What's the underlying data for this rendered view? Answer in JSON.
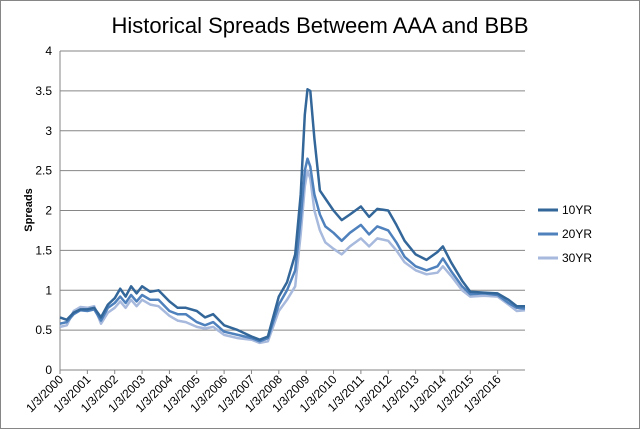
{
  "chart_data": {
    "type": "line",
    "title": "Historical Spreads Betweem AAA and BBB",
    "xlabel": "",
    "ylabel": "Spreads",
    "ylim": [
      0,
      4
    ],
    "yticks": [
      "0",
      "0.5",
      "1",
      "1.5",
      "2",
      "2.5",
      "3",
      "3.5",
      "4"
    ],
    "xticks": [
      "1/3/2000",
      "1/3/2001",
      "1/3/2002",
      "1/3/2003",
      "1/3/2004",
      "1/3/2005",
      "1/3/2006",
      "1/3/2007",
      "1/3/2008",
      "1/3/2009",
      "1/3/2010",
      "1/3/2011",
      "1/3/2012",
      "1/3/2013",
      "1/3/2014",
      "1/3/2015",
      "1/3/2016"
    ],
    "grid": "horizontal",
    "legend": "right",
    "series": [
      {
        "name": "10YR",
        "color": "#336699",
        "points": [
          [
            2000.0,
            0.66
          ],
          [
            2000.25,
            0.63
          ],
          [
            2000.5,
            0.72
          ],
          [
            2000.75,
            0.76
          ],
          [
            2001.0,
            0.76
          ],
          [
            2001.25,
            0.78
          ],
          [
            2001.5,
            0.66
          ],
          [
            2001.75,
            0.82
          ],
          [
            2002.0,
            0.9
          ],
          [
            2002.2,
            1.02
          ],
          [
            2002.4,
            0.92
          ],
          [
            2002.6,
            1.05
          ],
          [
            2002.8,
            0.96
          ],
          [
            2003.0,
            1.05
          ],
          [
            2003.3,
            0.98
          ],
          [
            2003.6,
            1.0
          ],
          [
            2004.0,
            0.86
          ],
          [
            2004.3,
            0.78
          ],
          [
            2004.6,
            0.78
          ],
          [
            2005.0,
            0.74
          ],
          [
            2005.3,
            0.66
          ],
          [
            2005.6,
            0.7
          ],
          [
            2006.0,
            0.56
          ],
          [
            2006.5,
            0.5
          ],
          [
            2007.0,
            0.42
          ],
          [
            2007.3,
            0.38
          ],
          [
            2007.6,
            0.42
          ],
          [
            2008.0,
            0.92
          ],
          [
            2008.3,
            1.1
          ],
          [
            2008.6,
            1.45
          ],
          [
            2008.8,
            2.2
          ],
          [
            2008.95,
            3.2
          ],
          [
            2009.05,
            3.52
          ],
          [
            2009.15,
            3.5
          ],
          [
            2009.3,
            2.9
          ],
          [
            2009.5,
            2.25
          ],
          [
            2009.7,
            2.15
          ],
          [
            2010.0,
            2.0
          ],
          [
            2010.3,
            1.88
          ],
          [
            2010.6,
            1.95
          ],
          [
            2011.0,
            2.05
          ],
          [
            2011.3,
            1.92
          ],
          [
            2011.6,
            2.02
          ],
          [
            2012.0,
            2.0
          ],
          [
            2012.3,
            1.82
          ],
          [
            2012.6,
            1.62
          ],
          [
            2013.0,
            1.45
          ],
          [
            2013.4,
            1.38
          ],
          [
            2013.8,
            1.48
          ],
          [
            2014.0,
            1.55
          ],
          [
            2014.3,
            1.35
          ],
          [
            2014.7,
            1.12
          ],
          [
            2015.0,
            0.98
          ],
          [
            2015.5,
            0.97
          ],
          [
            2016.0,
            0.96
          ],
          [
            2016.4,
            0.88
          ],
          [
            2016.7,
            0.8
          ],
          [
            2017.0,
            0.8
          ]
        ]
      },
      {
        "name": "20YR",
        "color": "#4f81bd",
        "points": [
          [
            2000.0,
            0.58
          ],
          [
            2000.25,
            0.6
          ],
          [
            2000.5,
            0.7
          ],
          [
            2000.75,
            0.75
          ],
          [
            2001.0,
            0.74
          ],
          [
            2001.25,
            0.76
          ],
          [
            2001.5,
            0.62
          ],
          [
            2001.75,
            0.78
          ],
          [
            2002.0,
            0.84
          ],
          [
            2002.2,
            0.92
          ],
          [
            2002.4,
            0.84
          ],
          [
            2002.6,
            0.94
          ],
          [
            2002.8,
            0.86
          ],
          [
            2003.0,
            0.94
          ],
          [
            2003.3,
            0.88
          ],
          [
            2003.6,
            0.88
          ],
          [
            2004.0,
            0.74
          ],
          [
            2004.3,
            0.7
          ],
          [
            2004.6,
            0.7
          ],
          [
            2005.0,
            0.6
          ],
          [
            2005.3,
            0.56
          ],
          [
            2005.6,
            0.6
          ],
          [
            2006.0,
            0.48
          ],
          [
            2006.5,
            0.44
          ],
          [
            2007.0,
            0.4
          ],
          [
            2007.3,
            0.36
          ],
          [
            2007.6,
            0.4
          ],
          [
            2008.0,
            0.82
          ],
          [
            2008.3,
            1.0
          ],
          [
            2008.6,
            1.25
          ],
          [
            2008.8,
            1.9
          ],
          [
            2008.95,
            2.5
          ],
          [
            2009.05,
            2.65
          ],
          [
            2009.15,
            2.55
          ],
          [
            2009.3,
            2.2
          ],
          [
            2009.5,
            1.95
          ],
          [
            2009.7,
            1.8
          ],
          [
            2010.0,
            1.72
          ],
          [
            2010.3,
            1.62
          ],
          [
            2010.6,
            1.72
          ],
          [
            2011.0,
            1.82
          ],
          [
            2011.3,
            1.7
          ],
          [
            2011.6,
            1.8
          ],
          [
            2012.0,
            1.75
          ],
          [
            2012.3,
            1.6
          ],
          [
            2012.6,
            1.42
          ],
          [
            2013.0,
            1.3
          ],
          [
            2013.4,
            1.25
          ],
          [
            2013.8,
            1.3
          ],
          [
            2014.0,
            1.4
          ],
          [
            2014.3,
            1.24
          ],
          [
            2014.7,
            1.05
          ],
          [
            2015.0,
            0.95
          ],
          [
            2015.5,
            0.96
          ],
          [
            2016.0,
            0.94
          ],
          [
            2016.4,
            0.84
          ],
          [
            2016.7,
            0.78
          ],
          [
            2017.0,
            0.77
          ]
        ]
      },
      {
        "name": "30YR",
        "color": "#a7b9dc",
        "points": [
          [
            2000.0,
            0.54
          ],
          [
            2000.25,
            0.56
          ],
          [
            2000.5,
            0.74
          ],
          [
            2000.75,
            0.79
          ],
          [
            2001.0,
            0.78
          ],
          [
            2001.25,
            0.8
          ],
          [
            2001.5,
            0.58
          ],
          [
            2001.75,
            0.72
          ],
          [
            2002.0,
            0.78
          ],
          [
            2002.2,
            0.86
          ],
          [
            2002.4,
            0.78
          ],
          [
            2002.6,
            0.88
          ],
          [
            2002.8,
            0.8
          ],
          [
            2003.0,
            0.88
          ],
          [
            2003.3,
            0.82
          ],
          [
            2003.6,
            0.8
          ],
          [
            2004.0,
            0.68
          ],
          [
            2004.3,
            0.62
          ],
          [
            2004.6,
            0.6
          ],
          [
            2005.0,
            0.54
          ],
          [
            2005.3,
            0.52
          ],
          [
            2005.6,
            0.54
          ],
          [
            2006.0,
            0.44
          ],
          [
            2006.5,
            0.4
          ],
          [
            2007.0,
            0.38
          ],
          [
            2007.3,
            0.34
          ],
          [
            2007.6,
            0.36
          ],
          [
            2008.0,
            0.74
          ],
          [
            2008.3,
            0.88
          ],
          [
            2008.6,
            1.05
          ],
          [
            2008.8,
            1.7
          ],
          [
            2008.95,
            2.3
          ],
          [
            2009.05,
            2.5
          ],
          [
            2009.15,
            2.4
          ],
          [
            2009.3,
            2.0
          ],
          [
            2009.5,
            1.75
          ],
          [
            2009.7,
            1.6
          ],
          [
            2010.0,
            1.52
          ],
          [
            2010.3,
            1.45
          ],
          [
            2010.6,
            1.55
          ],
          [
            2011.0,
            1.65
          ],
          [
            2011.3,
            1.55
          ],
          [
            2011.6,
            1.65
          ],
          [
            2012.0,
            1.62
          ],
          [
            2012.3,
            1.5
          ],
          [
            2012.6,
            1.35
          ],
          [
            2013.0,
            1.25
          ],
          [
            2013.4,
            1.2
          ],
          [
            2013.8,
            1.22
          ],
          [
            2014.0,
            1.3
          ],
          [
            2014.3,
            1.18
          ],
          [
            2014.7,
            1.0
          ],
          [
            2015.0,
            0.92
          ],
          [
            2015.5,
            0.93
          ],
          [
            2016.0,
            0.92
          ],
          [
            2016.4,
            0.82
          ],
          [
            2016.7,
            0.74
          ],
          [
            2017.0,
            0.75
          ]
        ]
      }
    ]
  }
}
